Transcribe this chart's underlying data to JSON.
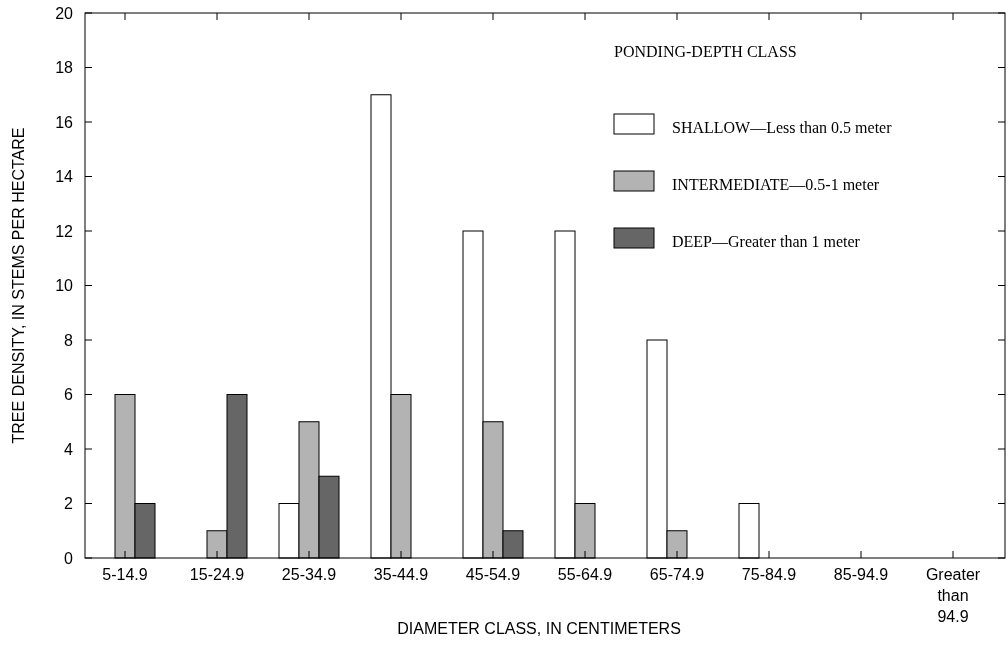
{
  "chart_data": {
    "type": "bar",
    "xlabel": "DIAMETER CLASS, IN CENTIMETERS",
    "ylabel": "TREE DENSITY, IN STEMS PER HECTARE",
    "legend_title": "PONDING-DEPTH CLASS",
    "categories": [
      "5-14.9",
      "15-24.9",
      "25-34.9",
      "35-44.9",
      "45-54.9",
      "55-64.9",
      "65-74.9",
      "75-84.9",
      "85-94.9",
      "Greater than 94.9"
    ],
    "series": [
      {
        "name": "SHALLOW—Less than 0.5 meter",
        "color": "#ffffff",
        "values": [
          null,
          null,
          2,
          17,
          12,
          12,
          8,
          2,
          null,
          null
        ]
      },
      {
        "name": "INTERMEDIATE—0.5-1 meter",
        "color": "#b3b3b3",
        "values": [
          6,
          1,
          5,
          6,
          5,
          2,
          1,
          null,
          null,
          null
        ]
      },
      {
        "name": "DEEP—Greater than 1 meter",
        "color": "#666666",
        "values": [
          2,
          6,
          3,
          null,
          1,
          null,
          null,
          null,
          null,
          null
        ]
      }
    ],
    "ylim": [
      0,
      20
    ],
    "yticks": [
      0,
      2,
      4,
      6,
      8,
      10,
      12,
      14,
      16,
      18,
      20
    ],
    "grid": false,
    "legend": "top right"
  }
}
